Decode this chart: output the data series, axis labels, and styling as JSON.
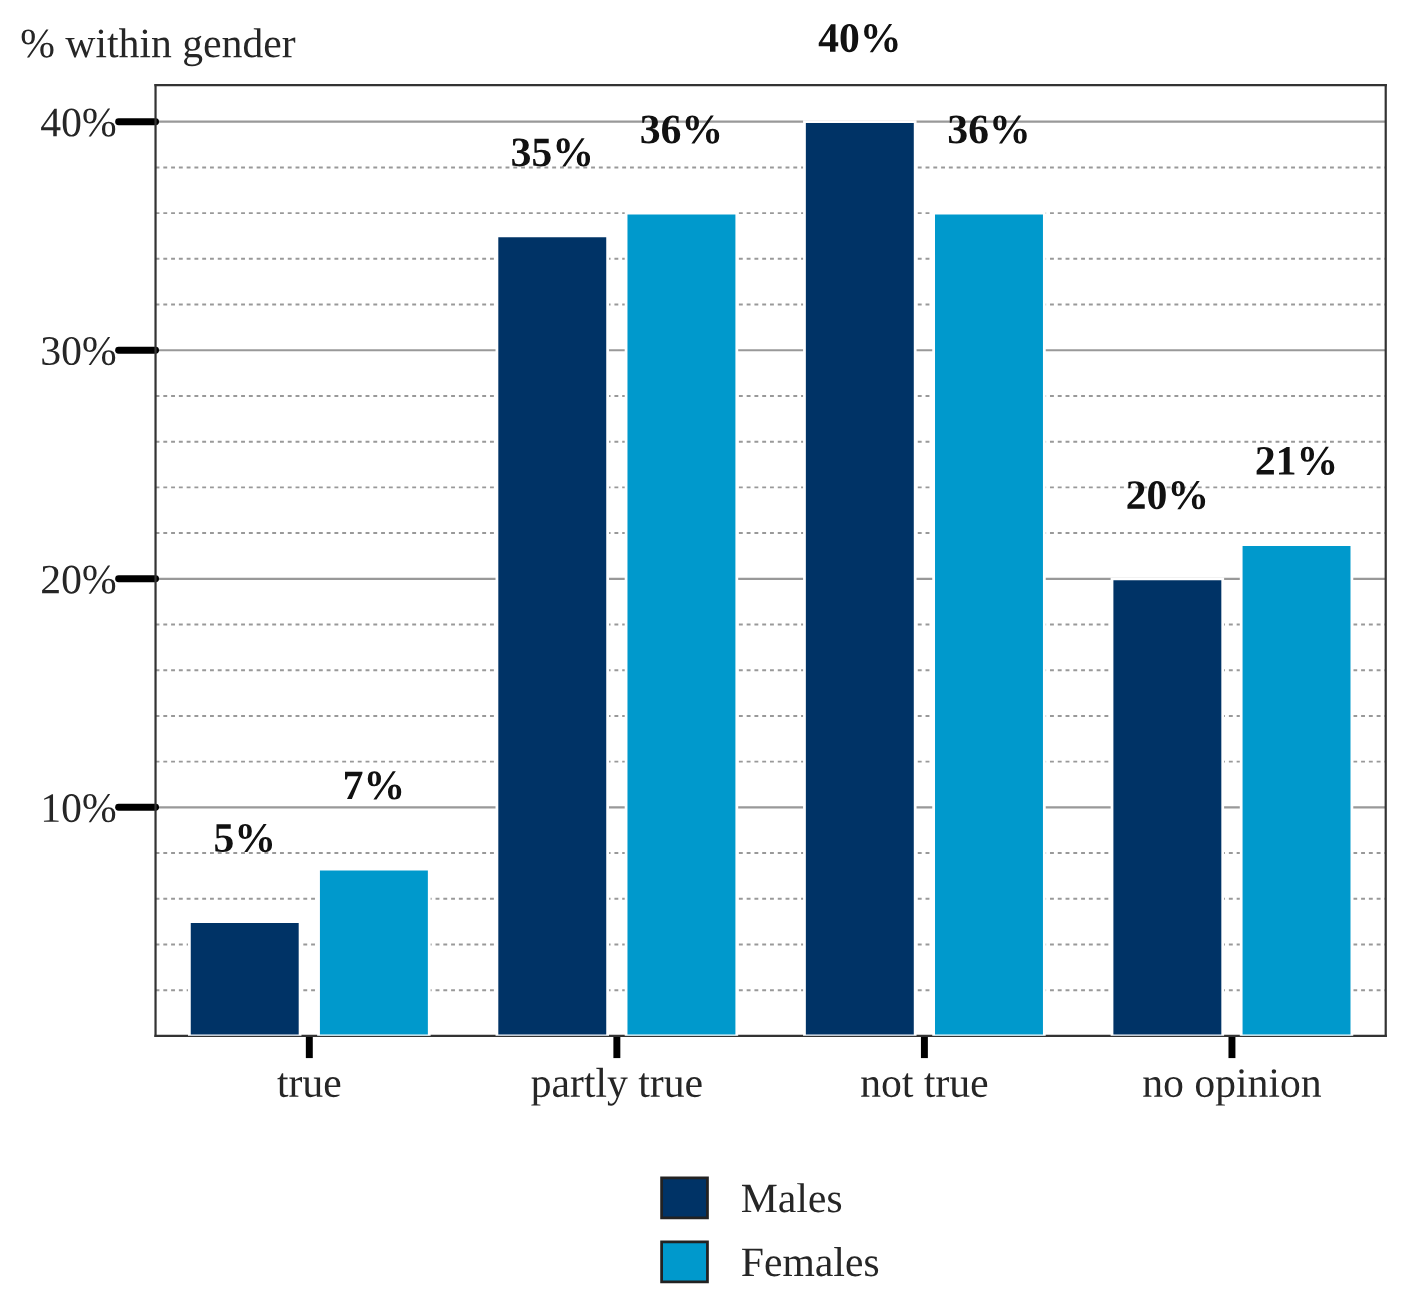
{
  "chart_data": {
    "type": "bar",
    "ylabel": "% within gender",
    "categories": [
      "true",
      "partly true",
      "not true",
      "no opinion"
    ],
    "series": [
      {
        "name": "Males",
        "color": "#003366",
        "values": [
          5,
          35,
          40,
          20
        ],
        "value_labels": [
          "5%",
          "35%",
          "40%",
          "20%"
        ]
      },
      {
        "name": "Females",
        "color": "#0099cc",
        "values": [
          7.3,
          36,
          36,
          21.5
        ],
        "value_labels": [
          "7%",
          "36%",
          "36%",
          "21%"
        ]
      }
    ],
    "ylim": [
      0,
      41.6
    ],
    "yticks": [
      {
        "value": 2,
        "label": null
      },
      {
        "value": 4,
        "label": null
      },
      {
        "value": 6,
        "label": null
      },
      {
        "value": 8,
        "label": null
      },
      {
        "value": 10,
        "label": "10%"
      },
      {
        "value": 12,
        "label": null
      },
      {
        "value": 14,
        "label": null
      },
      {
        "value": 16,
        "label": null
      },
      {
        "value": 18,
        "label": null
      },
      {
        "value": 20,
        "label": "20%"
      },
      {
        "value": 22,
        "label": null
      },
      {
        "value": 24,
        "label": null
      },
      {
        "value": 26,
        "label": null
      },
      {
        "value": 28,
        "label": null
      },
      {
        "value": 30,
        "label": "30%"
      },
      {
        "value": 32,
        "label": null
      },
      {
        "value": 34,
        "label": null
      },
      {
        "value": 36,
        "label": null
      },
      {
        "value": 38,
        "label": null
      },
      {
        "value": 40,
        "label": "40%"
      }
    ],
    "grid": "y",
    "legend": "bottom"
  }
}
